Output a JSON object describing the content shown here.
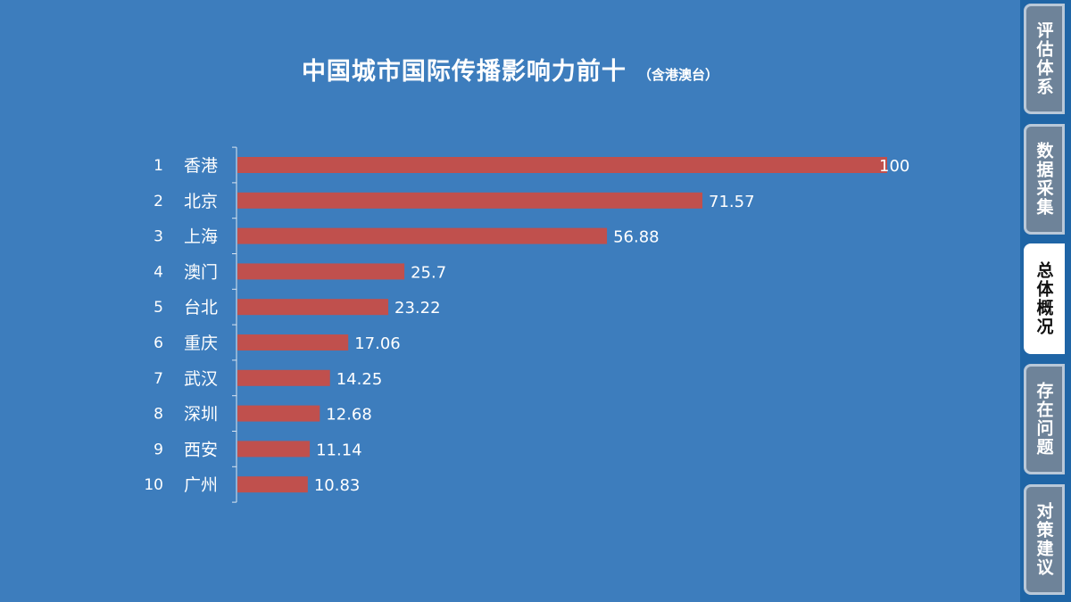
{
  "title": "中国城市国际传播影响力前十",
  "subtitle": "（含港澳台）",
  "colors": {
    "background": "#3d7dbd",
    "bar": "#c0504d",
    "tab": "#6e8399",
    "tab_active": "#ffffff"
  },
  "sidebar": {
    "tabs": [
      {
        "label": "评估体系",
        "active": false
      },
      {
        "label": "数据采集",
        "active": false
      },
      {
        "label": "总体概况",
        "active": true
      },
      {
        "label": "存在问题",
        "active": false
      },
      {
        "label": "对策建议",
        "active": false
      }
    ]
  },
  "chart_data": {
    "type": "bar",
    "orientation": "horizontal",
    "title": "中国城市国际传播影响力前十",
    "subtitle": "（含港澳台）",
    "ranks": [
      "1",
      "2",
      "3",
      "4",
      "5",
      "6",
      "7",
      "8",
      "9",
      "10"
    ],
    "categories": [
      "香港",
      "北京",
      "上海",
      "澳门",
      "台北",
      "重庆",
      "武汉",
      "深圳",
      "西安",
      "广州"
    ],
    "values": [
      100,
      71.57,
      56.88,
      25.7,
      23.22,
      17.06,
      14.25,
      12.68,
      11.14,
      10.83
    ],
    "value_labels": [
      "100",
      "71.57",
      "56.88",
      "25.7",
      "23.22",
      "17.06",
      "14.25",
      "12.68",
      "11.14",
      "10.83"
    ],
    "xlim": [
      0,
      100
    ],
    "grid": false,
    "legend": "none",
    "data_labels": true
  }
}
